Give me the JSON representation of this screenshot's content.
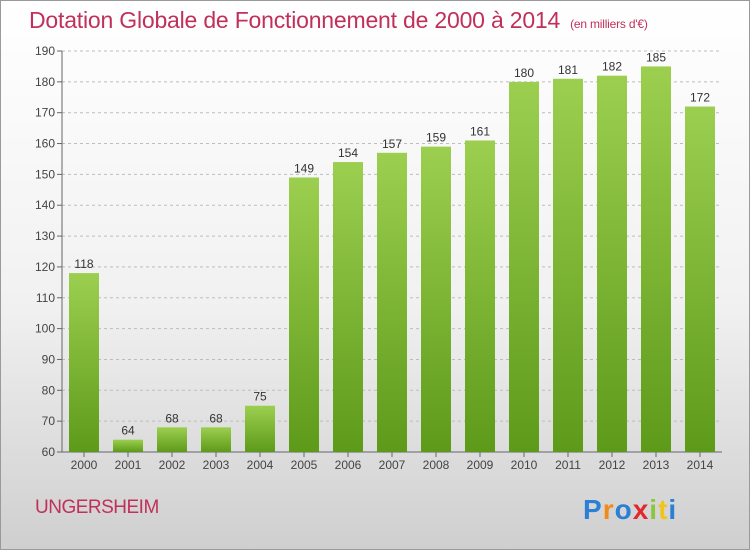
{
  "header": {
    "title": "Dotation Globale de Fonctionnement de 2000 à 2014",
    "subtitle": "(en milliers d'€)"
  },
  "footer": {
    "commune": "UNGERSHEIM",
    "logo_text": "Proxiti"
  },
  "colors": {
    "title": "#c0305a",
    "bar_top": "#9ccf4f",
    "bar_bottom": "#5e9a1a",
    "grid": "#bdbdbd"
  },
  "chart_data": {
    "type": "bar",
    "title": "Dotation Globale de Fonctionnement de 2000 à 2014",
    "subtitle": "(en milliers d'€)",
    "xlabel": "",
    "ylabel": "",
    "categories": [
      "2000",
      "2001",
      "2002",
      "2003",
      "2004",
      "2005",
      "2006",
      "2007",
      "2008",
      "2009",
      "2010",
      "2011",
      "2012",
      "2013",
      "2014"
    ],
    "values": [
      118,
      64,
      68,
      68,
      75,
      149,
      154,
      157,
      159,
      161,
      180,
      181,
      182,
      185,
      172
    ],
    "ylim": [
      60,
      190
    ],
    "yticks": [
      60,
      70,
      80,
      90,
      100,
      110,
      120,
      130,
      140,
      150,
      160,
      170,
      180,
      190
    ],
    "grid": true,
    "legend": "none"
  }
}
